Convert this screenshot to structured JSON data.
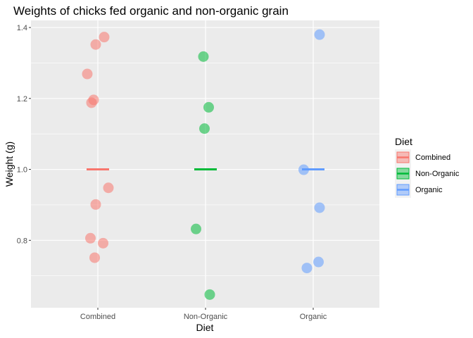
{
  "chart_data": {
    "type": "scatter",
    "title": "Weights of chicks fed organic and non-organic grain",
    "xlabel": "Diet",
    "ylabel": "Weight (g)",
    "categories": [
      "Combined",
      "Non-Organic",
      "Organic"
    ],
    "ylim": [
      0.61,
      1.42
    ],
    "yticks": [
      0.8,
      1.0,
      1.2,
      1.4
    ],
    "yticks_labels": [
      "0.8",
      "1.0",
      "1.2",
      "1.4"
    ],
    "grid": true,
    "legend": {
      "title": "Diet",
      "position": "right"
    },
    "series": [
      {
        "name": "Combined",
        "color": "#F8766D",
        "points": [
          {
            "jitter": 0.06,
            "y": 1.373
          },
          {
            "jitter": -0.02,
            "y": 1.352
          },
          {
            "jitter": -0.1,
            "y": 1.269
          },
          {
            "jitter": -0.04,
            "y": 1.196
          },
          {
            "jitter": -0.06,
            "y": 1.188
          },
          {
            "jitter": 0.1,
            "y": 0.948
          },
          {
            "jitter": -0.02,
            "y": 0.901
          },
          {
            "jitter": -0.07,
            "y": 0.806
          },
          {
            "jitter": 0.05,
            "y": 0.792
          },
          {
            "jitter": -0.03,
            "y": 0.751
          }
        ],
        "summary": 1.0
      },
      {
        "name": "Non-Organic",
        "color": "#00BA38",
        "points": [
          {
            "jitter": -0.02,
            "y": 1.318
          },
          {
            "jitter": 0.03,
            "y": 1.175
          },
          {
            "jitter": -0.01,
            "y": 1.115
          },
          {
            "jitter": -0.09,
            "y": 0.832
          },
          {
            "jitter": 0.04,
            "y": 0.647
          }
        ],
        "summary": 1.0
      },
      {
        "name": "Organic",
        "color": "#619CFF",
        "points": [
          {
            "jitter": 0.06,
            "y": 1.38
          },
          {
            "jitter": -0.09,
            "y": 0.999
          },
          {
            "jitter": 0.06,
            "y": 0.892
          },
          {
            "jitter": 0.05,
            "y": 0.739
          },
          {
            "jitter": -0.06,
            "y": 0.722
          }
        ],
        "summary": 1.0
      }
    ]
  }
}
